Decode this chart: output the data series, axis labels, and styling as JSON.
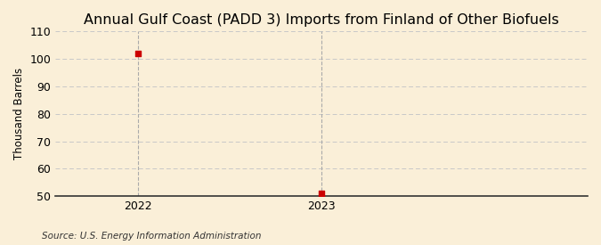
{
  "title": "Annual Gulf Coast (PADD 3) Imports from Finland of Other Biofuels",
  "ylabel": "Thousand Barrels",
  "source_text": "Source: U.S. Energy Information Administration",
  "background_color": "#faefd8",
  "x_values": [
    2022,
    2023
  ],
  "y_values": [
    102,
    51
  ],
  "point_color": "#cc0000",
  "xlim": [
    2021.55,
    2024.45
  ],
  "ylim": [
    50,
    110
  ],
  "yticks": [
    50,
    60,
    70,
    80,
    90,
    100,
    110
  ],
  "xticks": [
    2022,
    2023
  ],
  "grid_color": "#c8c8c8",
  "vline_color": "#aaaaaa",
  "title_fontsize": 11.5,
  "label_fontsize": 8.5,
  "tick_fontsize": 9,
  "source_fontsize": 7.5
}
